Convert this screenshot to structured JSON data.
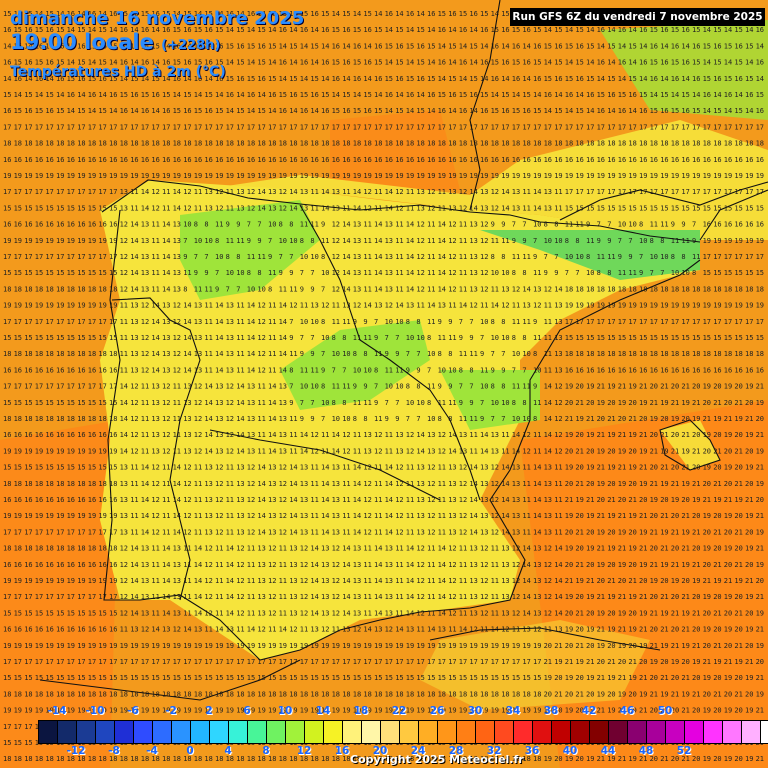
{
  "header": {
    "date": "dimanche 16 novembre 2025",
    "time": "19:00 locale",
    "lead": "(+228h)",
    "field": "Températures HD à 2m (°C)"
  },
  "run_info": "Run GFS 6Z du vendredi 7 novembre 2025",
  "copyright": "Copyright 2025 Meteociel.fr",
  "legend": {
    "labels_top": [
      "-14",
      "-10",
      "-6",
      "-2",
      "2",
      "6",
      "10",
      "14",
      "18",
      "22",
      "26",
      "30",
      "34",
      "38",
      "42",
      "46",
      "50"
    ],
    "labels_bottom": [
      "-12",
      "-8",
      "-4",
      "0",
      "4",
      "8",
      "12",
      "16",
      "20",
      "24",
      "28",
      "32",
      "36",
      "40",
      "44",
      "48",
      "52"
    ],
    "colors": [
      "#0b1540",
      "#132a6a",
      "#1b3b94",
      "#1f46bf",
      "#1f2fd6",
      "#2f4cff",
      "#2d6cff",
      "#2a93ff",
      "#22b6ff",
      "#2fd6ff",
      "#37f2d8",
      "#48f598",
      "#6ff261",
      "#a1f23a",
      "#d2f21f",
      "#f6f225",
      "#fff27a",
      "#fff6a8",
      "#ffe07a",
      "#ffc940",
      "#ffae24",
      "#ff9619",
      "#ff7f15",
      "#ff6414",
      "#ff4a1f",
      "#ff2b2b",
      "#e01010",
      "#c00000",
      "#a00000",
      "#830000",
      "#700030",
      "#8a0070",
      "#a8009b",
      "#c800c0",
      "#e400e0",
      "#ff33ff",
      "#ff77ff",
      "#ffb0ff",
      "#ffffff"
    ]
  },
  "regions": {
    "ocean_color": "#f39a1c",
    "warm_color": "#ff8418",
    "land_color": "#f6e43c",
    "cold_color": "#9fe43a",
    "cool_color": "#6fd85a",
    "coast_color": "#111111"
  }
}
